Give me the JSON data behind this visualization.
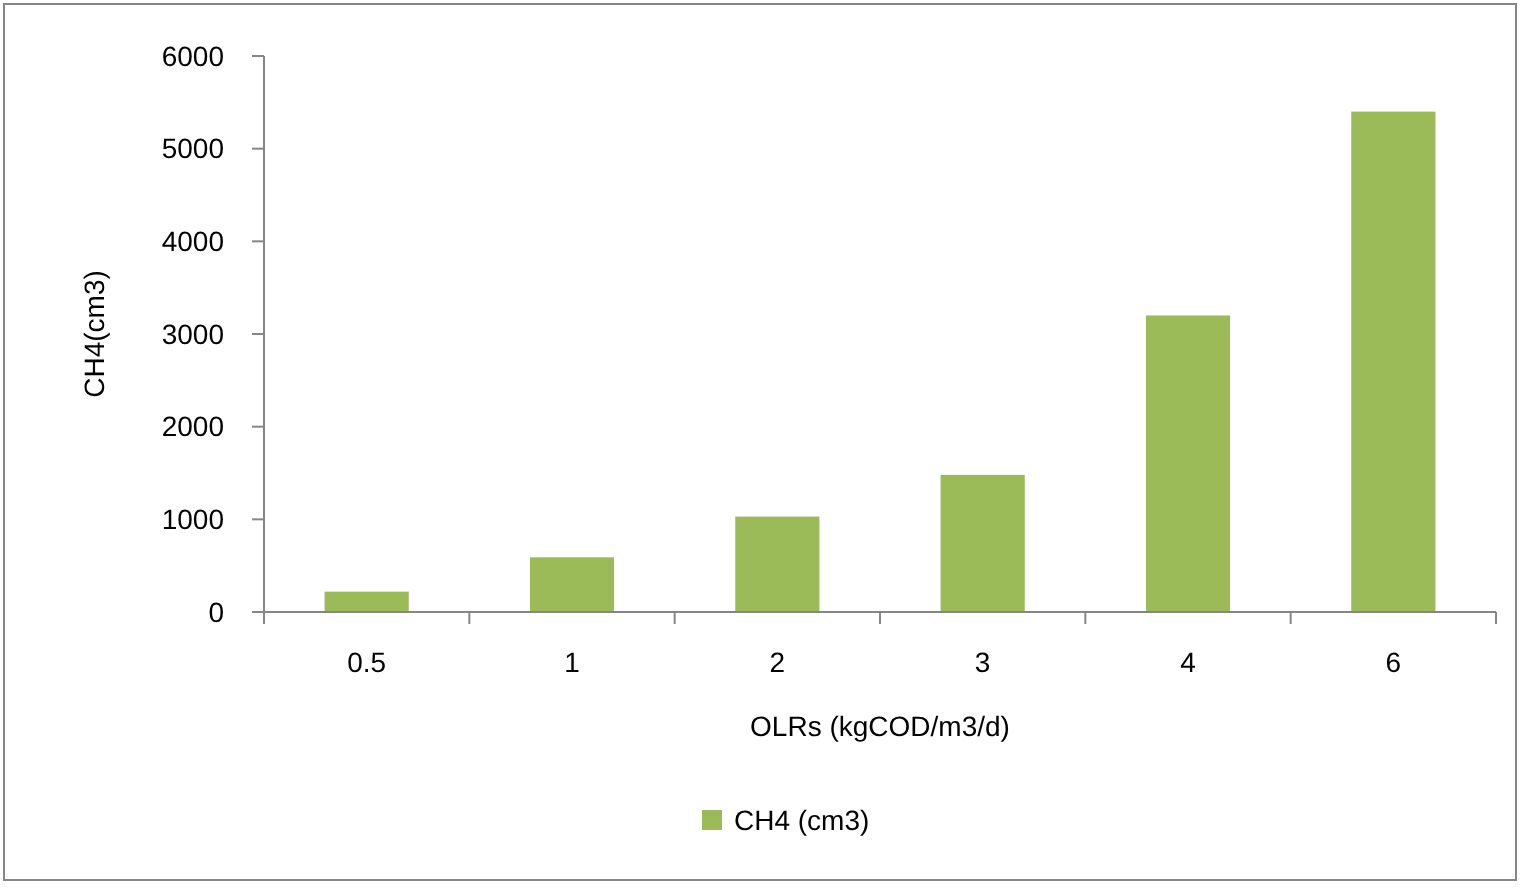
{
  "chart_data": {
    "type": "bar",
    "xlabel": "OLRs (kgCOD/m3/d)",
    "ylabel": "CH4(cm3)",
    "categories": [
      "0.5",
      "1",
      "2",
      "3",
      "4",
      "6"
    ],
    "series": [
      {
        "name": "CH4 (cm3)",
        "color": "#9bbb59",
        "values": [
          220,
          590,
          1030,
          1480,
          3200,
          5400
        ]
      }
    ],
    "ylim": [
      0,
      6000
    ],
    "yticks": [
      0,
      1000,
      2000,
      3000,
      4000,
      5000,
      6000
    ],
    "grid": false,
    "legend": "bottom"
  }
}
